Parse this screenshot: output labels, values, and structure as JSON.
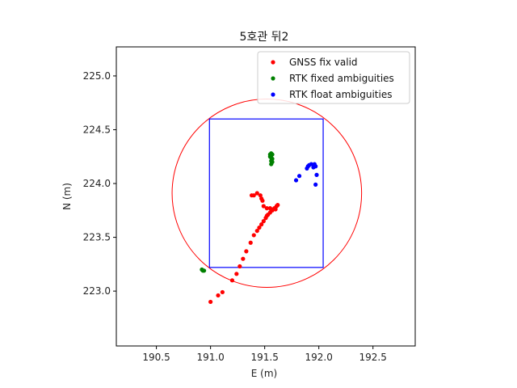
{
  "chart_data": {
    "type": "scatter",
    "title": "5호관 뒤2",
    "xlabel": "E (m)",
    "ylabel": "N (m)",
    "xlim": [
      190.13,
      192.89
    ],
    "ylim": [
      222.49,
      225.27
    ],
    "xticks": [
      190.5,
      191.0,
      191.5,
      192.0,
      192.5
    ],
    "yticks": [
      223.0,
      223.5,
      224.0,
      224.5,
      225.0
    ],
    "xtick_labels": [
      "190.5",
      "191.0",
      "191.5",
      "192.0",
      "192.5"
    ],
    "ytick_labels": [
      "223.0",
      "223.5",
      "224.0",
      "224.5",
      "225.0"
    ],
    "grid": false,
    "legend_position": "top-right",
    "series": [
      {
        "name": "GNSS fix valid",
        "color": "#ff0000",
        "points": [
          [
            191.0,
            222.9
          ],
          [
            191.07,
            222.96
          ],
          [
            191.11,
            222.99
          ],
          [
            191.2,
            223.1
          ],
          [
            191.24,
            223.16
          ],
          [
            191.27,
            223.23
          ],
          [
            191.3,
            223.3
          ],
          [
            191.33,
            223.37
          ],
          [
            191.37,
            223.45
          ],
          [
            191.4,
            223.52
          ],
          [
            191.43,
            223.56
          ],
          [
            191.45,
            223.59
          ],
          [
            191.47,
            223.62
          ],
          [
            191.49,
            223.65
          ],
          [
            191.51,
            223.68
          ],
          [
            191.52,
            223.7
          ],
          [
            191.53,
            223.71
          ],
          [
            191.55,
            223.73
          ],
          [
            191.57,
            223.75
          ],
          [
            191.59,
            223.77
          ],
          [
            191.61,
            223.79
          ],
          [
            191.62,
            223.8
          ],
          [
            191.56,
            223.76
          ],
          [
            191.6,
            223.76
          ],
          [
            191.52,
            223.77
          ],
          [
            191.55,
            223.77
          ],
          [
            191.49,
            223.79
          ],
          [
            191.48,
            223.84
          ],
          [
            191.47,
            223.86
          ],
          [
            191.46,
            223.89
          ],
          [
            191.43,
            223.91
          ],
          [
            191.4,
            223.89
          ],
          [
            191.38,
            223.89
          ]
        ]
      },
      {
        "name": "RTK fixed ambiguities",
        "color": "#008000",
        "points": [
          [
            190.93,
            223.19
          ],
          [
            190.92,
            223.2
          ],
          [
            190.94,
            223.19
          ],
          [
            191.55,
            224.27
          ],
          [
            191.56,
            224.28
          ],
          [
            191.57,
            224.27
          ],
          [
            191.56,
            224.26
          ],
          [
            191.55,
            224.25
          ],
          [
            191.56,
            224.24
          ],
          [
            191.57,
            224.23
          ],
          [
            191.56,
            224.21
          ],
          [
            191.57,
            224.2
          ],
          [
            191.56,
            224.18
          ]
        ]
      },
      {
        "name": "RTK float ambiguities",
        "color": "#0000ff",
        "points": [
          [
            191.79,
            224.03
          ],
          [
            191.82,
            224.07
          ],
          [
            191.89,
            224.14
          ],
          [
            191.9,
            224.16
          ],
          [
            191.91,
            224.17
          ],
          [
            191.93,
            224.18
          ],
          [
            191.96,
            224.18
          ],
          [
            191.97,
            224.16
          ],
          [
            191.95,
            224.15
          ],
          [
            191.96,
            224.17
          ],
          [
            191.98,
            224.08
          ],
          [
            191.97,
            223.99
          ]
        ]
      }
    ],
    "rectangle": {
      "x": [
        190.99,
        192.04
      ],
      "y": [
        223.22,
        224.6
      ],
      "color": "#0000ff"
    },
    "circle": {
      "center": [
        191.52,
        223.91
      ],
      "radius": 0.875,
      "color": "#ff0000"
    }
  }
}
